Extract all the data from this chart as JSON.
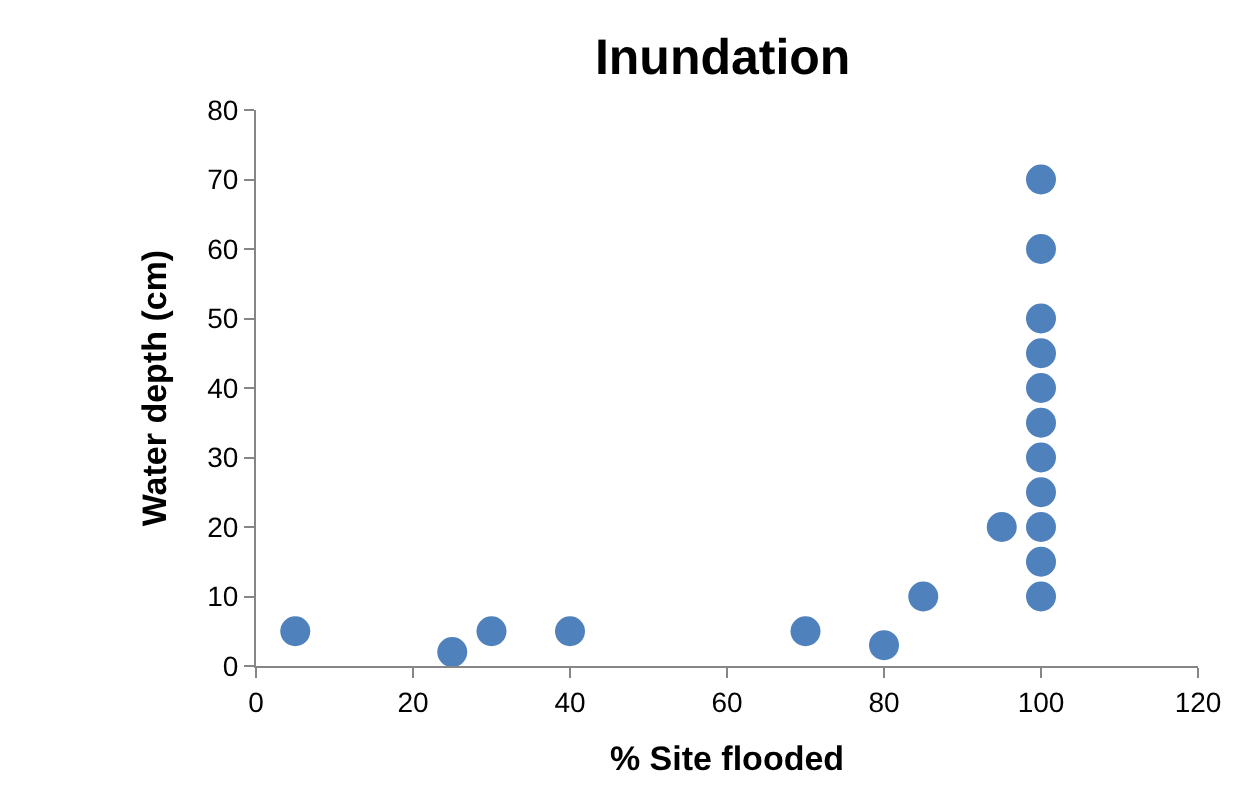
{
  "chart_data": {
    "type": "scatter",
    "title": "Inundation",
    "xlabel": "% Site flooded",
    "ylabel": "Water depth (cm)",
    "x": [
      5,
      25,
      30,
      40,
      70,
      80,
      85,
      95,
      100,
      100,
      100,
      100,
      100,
      100,
      100,
      100,
      100,
      100,
      100
    ],
    "series": [
      {
        "color": "#4f81bd",
        "values": [
          5,
          2,
          5,
          5,
          5,
          3,
          10,
          20,
          10,
          15,
          20,
          25,
          30,
          35,
          40,
          45,
          50,
          60,
          70
        ]
      }
    ],
    "xlim": [
      0,
      120
    ],
    "xticks": [
      0,
      20,
      40,
      60,
      80,
      100,
      120
    ],
    "ylim": [
      0,
      80
    ],
    "yticks": [
      0,
      10,
      20,
      30,
      40,
      50,
      60,
      70,
      80
    ],
    "marker": "circle"
  }
}
